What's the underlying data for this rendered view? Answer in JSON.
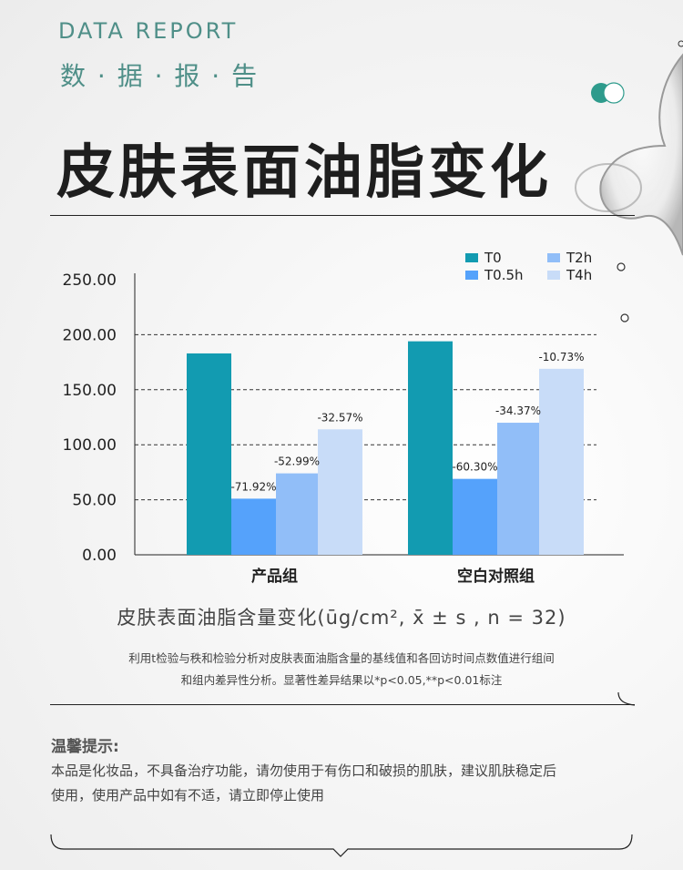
{
  "header": {
    "report_en": "DATA REPORT",
    "report_cn": "数 · 据 · 报 · 告",
    "title": "皮肤表面油脂变化"
  },
  "chart_data": {
    "type": "bar",
    "categories": [
      "产品组",
      "空白对照组"
    ],
    "series": [
      {
        "name": "T0",
        "color": "#129bb1",
        "values": [
          183,
          194
        ],
        "labels": [
          "",
          ""
        ]
      },
      {
        "name": "T0.5h",
        "color": "#55a2fb",
        "values": [
          51,
          69
        ],
        "labels": [
          "-71.92%",
          "-60.30%"
        ]
      },
      {
        "name": "T2h",
        "color": "#91bef8",
        "values": [
          74,
          120
        ],
        "labels": [
          "-52.99%",
          "-34.37%"
        ]
      },
      {
        "name": "T4h",
        "color": "#c8dcf8",
        "values": [
          114,
          169
        ],
        "labels": [
          "-32.57%",
          "-10.73%"
        ]
      }
    ],
    "yticks": [
      "0.00",
      "50.00",
      "100.00",
      "150.00",
      "200.00",
      "250.00"
    ],
    "ylim": [
      0,
      250
    ],
    "grid": true,
    "legend_position": "top-right",
    "subtitle": "皮肤表面油脂含量变化(ūg/cm², x̄ ± s , n = 32)"
  },
  "note": {
    "line1": "利用t检验与秩和检验分析对皮肤表面油脂含量的基线值和各回访时间点数值进行组间",
    "line2": "和组内差异性分析。显著性差异结果以*p<0.05,**p<0.01标注"
  },
  "tips": {
    "title": "温馨提示:",
    "line1": "本品是化妆品，不具备治疗功能，请勿使用于有伤口和破损的肌肤，建议肌肤稳定后",
    "line2": "使用，使用产品中如有不适，请立即停止使用"
  }
}
